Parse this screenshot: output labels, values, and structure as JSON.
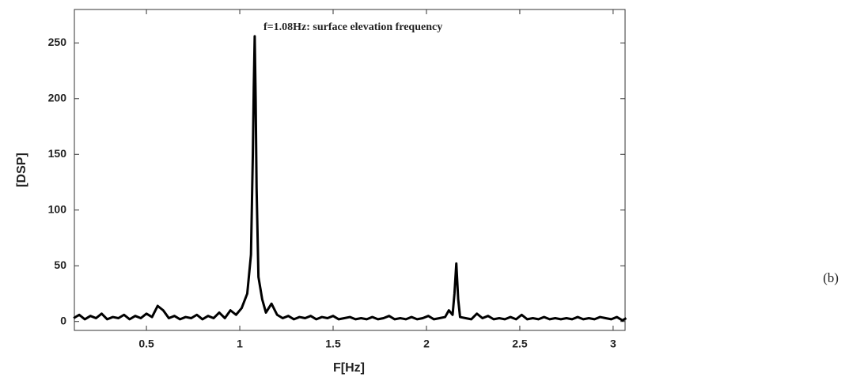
{
  "chart_data": {
    "type": "line",
    "annotation": "f=1.08Hz: surface elevation frequency",
    "side_label": "(b)",
    "x_label": "F[Hz]",
    "y_label": "[DSP]",
    "color": "#000000",
    "xlim": [
      0.114,
      3.064
    ],
    "ylim": [
      -8,
      280
    ],
    "xticks": [
      0.5,
      1,
      1.5,
      2,
      2.5,
      3
    ],
    "yticks": [
      0,
      50,
      100,
      150,
      200,
      250
    ],
    "grid": false,
    "x": [
      0.11,
      0.14,
      0.17,
      0.2,
      0.23,
      0.26,
      0.29,
      0.32,
      0.35,
      0.38,
      0.41,
      0.44,
      0.47,
      0.5,
      0.53,
      0.56,
      0.59,
      0.62,
      0.65,
      0.68,
      0.71,
      0.74,
      0.77,
      0.8,
      0.83,
      0.86,
      0.89,
      0.92,
      0.95,
      0.98,
      1.01,
      1.04,
      1.06,
      1.07,
      1.075,
      1.08,
      1.085,
      1.09,
      1.1,
      1.12,
      1.14,
      1.17,
      1.2,
      1.23,
      1.26,
      1.29,
      1.32,
      1.35,
      1.38,
      1.41,
      1.44,
      1.47,
      1.5,
      1.53,
      1.56,
      1.59,
      1.62,
      1.65,
      1.68,
      1.71,
      1.74,
      1.77,
      1.8,
      1.83,
      1.86,
      1.89,
      1.92,
      1.95,
      1.98,
      2.01,
      2.04,
      2.07,
      2.1,
      2.12,
      2.14,
      2.15,
      2.16,
      2.17,
      2.18,
      2.21,
      2.24,
      2.27,
      2.3,
      2.33,
      2.36,
      2.39,
      2.42,
      2.45,
      2.48,
      2.51,
      2.54,
      2.57,
      2.6,
      2.63,
      2.66,
      2.69,
      2.72,
      2.75,
      2.78,
      2.81,
      2.84,
      2.87,
      2.9,
      2.93,
      2.96,
      2.99,
      3.02,
      3.05,
      3.07
    ],
    "values": [
      3,
      6,
      2,
      5,
      3,
      7,
      2,
      4,
      3,
      6,
      2,
      5,
      3,
      7,
      4,
      14,
      10,
      3,
      5,
      2,
      4,
      3,
      6,
      2,
      5,
      3,
      8,
      3,
      10,
      6,
      12,
      25,
      60,
      150,
      210,
      256,
      200,
      120,
      40,
      20,
      8,
      16,
      6,
      3,
      5,
      2,
      4,
      3,
      5,
      2,
      4,
      3,
      5,
      2,
      3,
      4,
      2,
      3,
      2,
      4,
      2,
      3,
      5,
      2,
      3,
      2,
      4,
      2,
      3,
      5,
      2,
      3,
      4,
      10,
      6,
      25,
      52,
      20,
      4,
      3,
      2,
      7,
      3,
      5,
      2,
      3,
      2,
      4,
      2,
      6,
      2,
      3,
      2,
      4,
      2,
      3,
      2,
      3,
      2,
      4,
      2,
      3,
      2,
      4,
      3,
      2,
      4,
      1,
      3
    ]
  }
}
